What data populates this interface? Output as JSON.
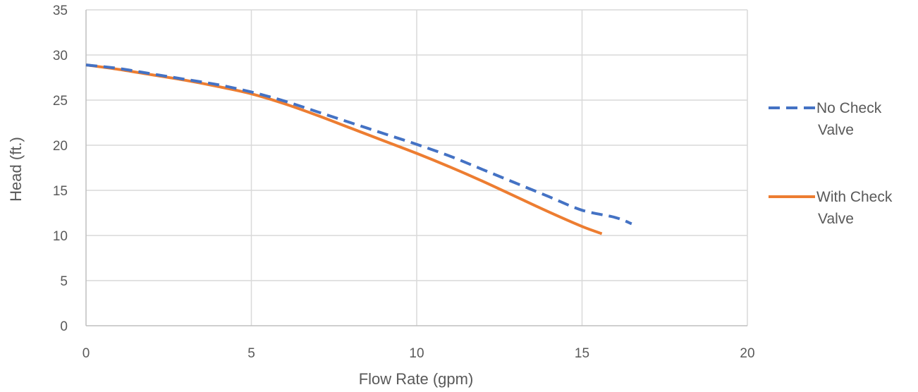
{
  "chart_data": {
    "type": "line",
    "title": "",
    "xlabel": "Flow Rate (gpm)",
    "ylabel": "Head (ft.)",
    "xlim": [
      0,
      20
    ],
    "ylim": [
      0,
      35
    ],
    "xticks": [
      0,
      5,
      10,
      15,
      20
    ],
    "yticks": [
      0,
      5,
      10,
      15,
      20,
      25,
      30,
      35
    ],
    "grid": true,
    "legend_position": "right",
    "series": [
      {
        "name": "No Check Valve",
        "name_lines": [
          "No Check",
          "Valve"
        ],
        "style": "dashed",
        "color": "#4472C4",
        "x": [
          0,
          1,
          2,
          3,
          4,
          5,
          6,
          7,
          8,
          9,
          10,
          11,
          12,
          13,
          14,
          15,
          16,
          16.5
        ],
        "y": [
          28.9,
          28.5,
          27.9,
          27.3,
          26.7,
          25.9,
          24.9,
          23.7,
          22.5,
          21.3,
          20.1,
          18.8,
          17.3,
          15.8,
          14.3,
          12.8,
          12.0,
          11.3
        ]
      },
      {
        "name": "With Check Valve",
        "name_lines": [
          "With Check",
          "Valve"
        ],
        "style": "solid",
        "color": "#ED7D31",
        "x": [
          0,
          1,
          2,
          3,
          4,
          5,
          6,
          7,
          8,
          9,
          10,
          11,
          12,
          13,
          14,
          15,
          15.6
        ],
        "y": [
          28.9,
          28.4,
          27.8,
          27.2,
          26.5,
          25.7,
          24.6,
          23.3,
          21.9,
          20.5,
          19.1,
          17.6,
          16.0,
          14.3,
          12.6,
          11.0,
          10.2
        ]
      }
    ]
  }
}
